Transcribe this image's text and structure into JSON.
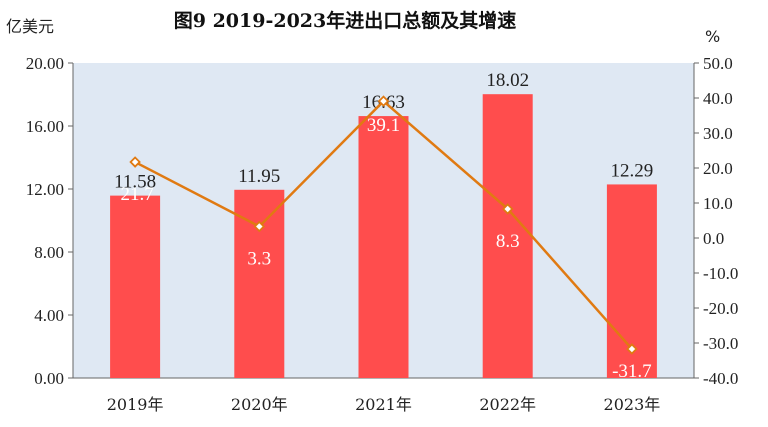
{
  "chart_data": {
    "type": "bar",
    "title": "图9   2019-2023年进出口总额及其增速",
    "ylabel_left": "亿美元",
    "ylabel_right": "%",
    "categories": [
      "2019年",
      "2020年",
      "2021年",
      "2022年",
      "2023年"
    ],
    "series": [
      {
        "type": "bar",
        "axis": "left",
        "values": [
          11.58,
          11.95,
          16.63,
          18.02,
          12.29
        ]
      },
      {
        "type": "line",
        "axis": "right",
        "values": [
          21.7,
          3.3,
          39.1,
          8.3,
          -31.7
        ]
      }
    ],
    "ylim_left": [
      0,
      20
    ],
    "ylim_right": [
      -40,
      50
    ],
    "yticks_left": [
      "0.00",
      "4.00",
      "8.00",
      "12.00",
      "16.00",
      "20.00"
    ],
    "yticks_right": [
      "-40.0",
      "-30.0",
      "-20.0",
      "-10.0",
      "0.0",
      "10.0",
      "20.0",
      "30.0",
      "40.0",
      "50.0"
    ],
    "value_labels": [
      "11.58",
      "11.95",
      "16.63",
      "18.02",
      "12.29"
    ],
    "growth_labels": [
      "21.7",
      "3.3",
      "39.1",
      "8.3",
      "-31.7"
    ],
    "grid": false,
    "colors": {
      "plot_bg": "#dfe8f3",
      "bar": "#ff4d4d",
      "line": "#e07a12",
      "marker_fill": "#ffffff"
    }
  }
}
